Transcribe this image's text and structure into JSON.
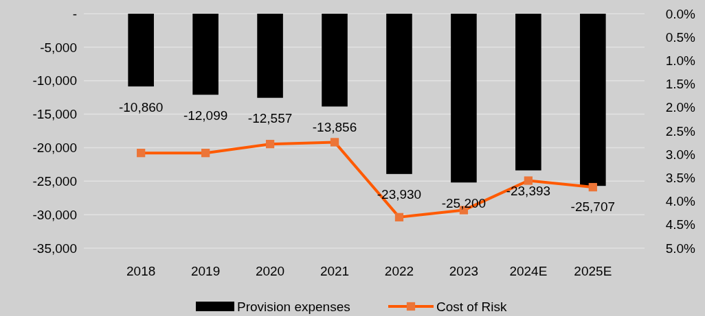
{
  "chart_data": {
    "type": "bar",
    "categories": [
      "2018",
      "2019",
      "2020",
      "2021",
      "2022",
      "2023",
      "2024E",
      "2025E"
    ],
    "series": [
      {
        "name": "Provision expenses",
        "color": "#000000",
        "values": [
          -10860,
          -12099,
          -12557,
          -13856,
          -23930,
          -25200,
          -23393,
          -25707
        ],
        "value_labels": [
          "-10,860",
          "-12,099",
          "-12,557",
          "-13,856",
          "-23,930",
          "-25,200",
          "-23,393",
          "-25,707"
        ]
      },
      {
        "name": "Cost of Risk",
        "type": "line",
        "axis": "y2",
        "color": "#ff5a00",
        "marker": "square",
        "values": [
          2.97,
          2.97,
          2.78,
          2.74,
          4.34,
          4.19,
          3.56,
          3.7
        ]
      }
    ],
    "ylim": [
      -35000,
      0
    ],
    "yticks": [
      {
        "value": 0,
        "label": "-"
      },
      {
        "value": -5000,
        "label": "-5,000"
      },
      {
        "value": -10000,
        "label": "-10,000"
      },
      {
        "value": -15000,
        "label": "-15,000"
      },
      {
        "value": -20000,
        "label": "-20,000"
      },
      {
        "value": -25000,
        "label": "-25,000"
      },
      {
        "value": -30000,
        "label": "-30,000"
      },
      {
        "value": -35000,
        "label": "-35,000"
      }
    ],
    "y2lim": [
      5,
      0
    ],
    "y2ticks": [
      {
        "value": 0,
        "label": "0.0%"
      },
      {
        "value": 0.5,
        "label": "0.5%"
      },
      {
        "value": 1,
        "label": "1.0%"
      },
      {
        "value": 1.5,
        "label": "1.5%"
      },
      {
        "value": 2,
        "label": "2.0%"
      },
      {
        "value": 2.5,
        "label": "2.5%"
      },
      {
        "value": 3,
        "label": "3.0%"
      },
      {
        "value": 3.5,
        "label": "3.5%"
      },
      {
        "value": 4,
        "label": "4.0%"
      },
      {
        "value": 4.5,
        "label": "4.5%"
      },
      {
        "value": 5,
        "label": "5.0%"
      }
    ],
    "grid": "y",
    "legend": "bottom"
  }
}
